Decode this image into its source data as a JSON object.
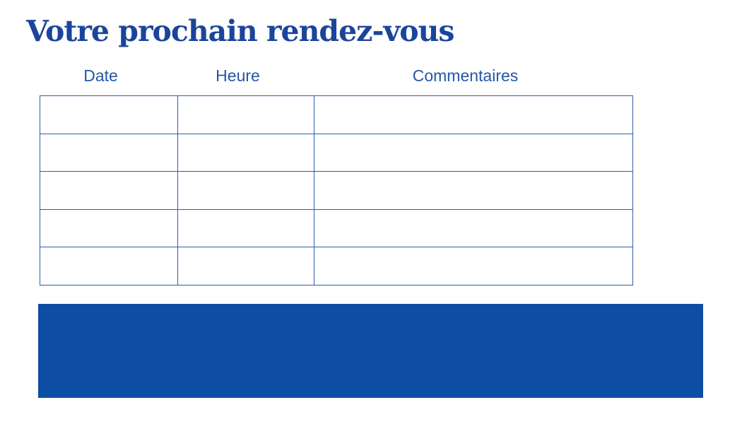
{
  "page": {
    "title": "Votre prochain rendez-vous"
  },
  "table": {
    "columns": [
      {
        "label": "Date"
      },
      {
        "label": "Heure"
      },
      {
        "label": "Commentaires"
      }
    ],
    "rows": [
      [
        "",
        "",
        ""
      ],
      [
        "",
        "",
        ""
      ],
      [
        "",
        "",
        ""
      ],
      [
        "",
        "",
        ""
      ],
      [
        "",
        "",
        ""
      ]
    ]
  },
  "banner": {
    "text": ""
  },
  "colors": {
    "title_text": "#1b459b",
    "header_text": "#2257a8",
    "table_border": "#2e5ca9",
    "banner_fill": "#0d4da3"
  }
}
